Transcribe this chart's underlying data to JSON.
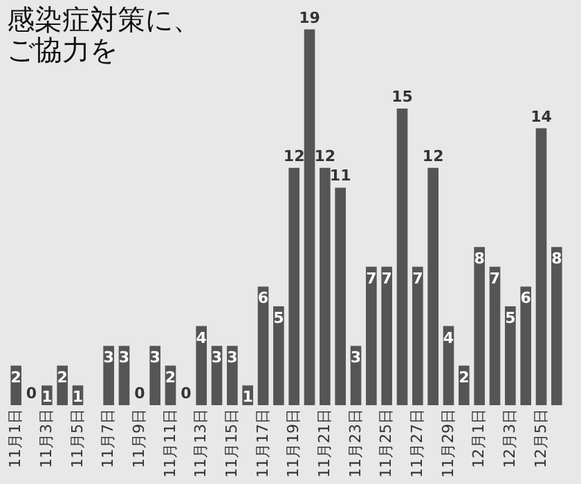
{
  "chart_data": {
    "type": "bar",
    "title": [
      "感染症対策に、",
      "ご協力を"
    ],
    "categories": [
      "11月1日",
      null,
      "11月3日",
      null,
      "11月5日",
      null,
      "11月7日",
      null,
      "11月9日",
      null,
      "11月11日",
      null,
      "11月13日",
      null,
      "11月15日",
      null,
      "11月17日",
      null,
      "11月19日",
      null,
      "11月21日",
      null,
      "11月23日",
      null,
      "11月25日",
      null,
      "11月27日",
      null,
      "11月29日",
      null,
      "12月1日",
      null,
      "12月3日",
      null,
      "12月5日",
      null
    ],
    "values": [
      2,
      0,
      1,
      2,
      1,
      null,
      3,
      3,
      0,
      3,
      2,
      0,
      4,
      3,
      3,
      1,
      6,
      5,
      12,
      19,
      12,
      11,
      3,
      7,
      7,
      15,
      7,
      12,
      4,
      2,
      8,
      7,
      5,
      6,
      14,
      8
    ],
    "color": "#555555",
    "data_labels": true,
    "tick_labels": "x",
    "grid": false
  }
}
